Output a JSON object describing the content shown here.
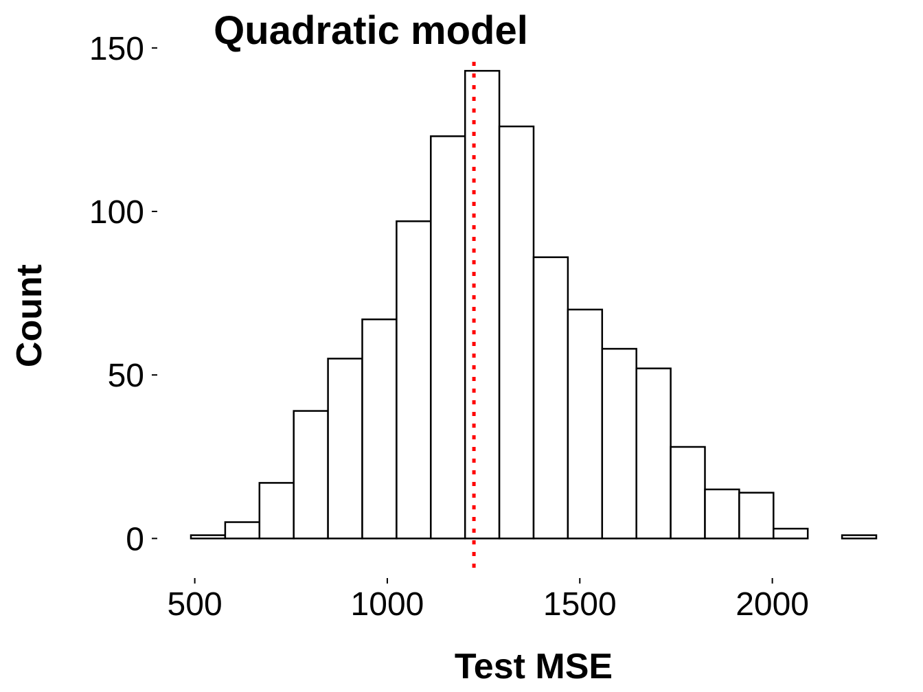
{
  "chart_data": {
    "type": "histogram",
    "title": "Quadratic model",
    "xlabel": "Test MSE",
    "ylabel": "Count",
    "xlim": [
      490,
      2270
    ],
    "ylim": [
      -10,
      155
    ],
    "x_ticks": [
      500,
      1000,
      1500,
      2000
    ],
    "y_ticks": [
      0,
      50,
      100,
      150
    ],
    "bin_width": 89,
    "bins": [
      {
        "x0": 490,
        "x1": 579,
        "count": 1
      },
      {
        "x0": 579,
        "x1": 668,
        "count": 5
      },
      {
        "x0": 668,
        "x1": 757,
        "count": 17
      },
      {
        "x0": 757,
        "x1": 846,
        "count": 39
      },
      {
        "x0": 846,
        "x1": 935,
        "count": 55
      },
      {
        "x0": 935,
        "x1": 1024,
        "count": 67
      },
      {
        "x0": 1024,
        "x1": 1113,
        "count": 97
      },
      {
        "x0": 1113,
        "x1": 1202,
        "count": 123
      },
      {
        "x0": 1202,
        "x1": 1291,
        "count": 143
      },
      {
        "x0": 1291,
        "x1": 1380,
        "count": 126
      },
      {
        "x0": 1380,
        "x1": 1469,
        "count": 86
      },
      {
        "x0": 1469,
        "x1": 1558,
        "count": 70
      },
      {
        "x0": 1558,
        "x1": 1647,
        "count": 58
      },
      {
        "x0": 1647,
        "x1": 1736,
        "count": 52
      },
      {
        "x0": 1736,
        "x1": 1825,
        "count": 28
      },
      {
        "x0": 1825,
        "x1": 1914,
        "count": 15
      },
      {
        "x0": 1914,
        "x1": 2003,
        "count": 14
      },
      {
        "x0": 2003,
        "x1": 2092,
        "count": 3
      },
      {
        "x0": 2092,
        "x1": 2181,
        "count": 0
      },
      {
        "x0": 2181,
        "x1": 2270,
        "count": 1
      }
    ],
    "reference_line": {
      "x": 1225,
      "style": "dotted",
      "color": "#ff0000"
    },
    "grid": false,
    "legend": "none",
    "colors": {
      "bar_fill": "#ffffff",
      "bar_stroke": "#000000",
      "reference_line": "#ff0000",
      "text": "#000000"
    }
  }
}
